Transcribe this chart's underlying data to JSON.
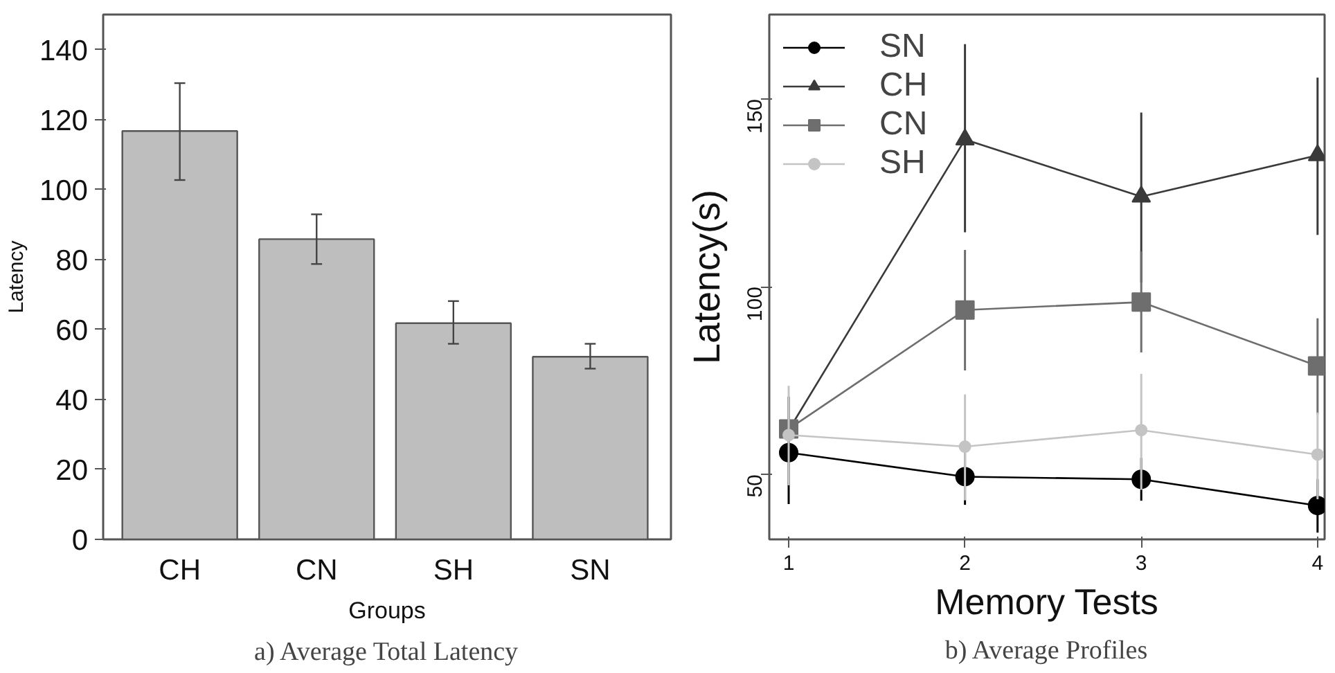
{
  "chart_data": [
    {
      "type": "bar",
      "xlabel": "Groups",
      "ylabel": "Latency",
      "annotations": [
        "a) Average Total Latency"
      ],
      "categories": [
        "CH",
        "CN",
        "SH",
        "SN"
      ],
      "values": [
        116.7,
        85.8,
        61.8,
        52.2
      ],
      "color": "#bebebe",
      "errors": [
        [
          102.7,
          130.4
        ],
        [
          78.7,
          92.9
        ],
        [
          55.9,
          68.1
        ],
        [
          48.8,
          55.9
        ]
      ],
      "ylim": [
        0,
        150
      ],
      "yticks": [
        0,
        20,
        40,
        60,
        80,
        100,
        120,
        140
      ],
      "grid": false
    },
    {
      "type": "line",
      "xlabel": "Memory Tests",
      "ylabel": "Latency(s)",
      "annotations": [
        "b) Average Profiles"
      ],
      "x": [
        1,
        2,
        3,
        4
      ],
      "xlim": [
        0.89,
        4.04
      ],
      "xticks": [
        1,
        2,
        3,
        4
      ],
      "ylim": [
        32.7,
        172.5
      ],
      "yticks": [
        50,
        100,
        150
      ],
      "grid": false,
      "legend": "top left",
      "line_style": "solid",
      "series": [
        {
          "name": "SN",
          "color": "#000000",
          "marker": "circle",
          "values": [
            55.8,
            49.4,
            48.7,
            41.7
          ],
          "errors": [
            [
              42.1,
              70.7
            ],
            [
              41.9,
              56.3
            ],
            [
              43.0,
              54.4
            ],
            [
              34.5,
              48.7
            ]
          ]
        },
        {
          "name": "CH",
          "color": "#3a3a3a",
          "marker": "triangle",
          "values": [
            61.8,
            139.2,
            124.0,
            135.0
          ],
          "errors": [
            null,
            [
              114.5,
              164.6
            ],
            [
              101.1,
              146.4
            ],
            [
              113.8,
              155.7
            ]
          ]
        },
        {
          "name": "CN",
          "color": "#6e6e6e",
          "marker": "square",
          "values": [
            62.1,
            93.8,
            95.9,
            78.9
          ],
          "errors": [
            null,
            [
              77.7,
              109.8
            ],
            [
              82.5,
              109.4
            ],
            [
              66.0,
              91.6
            ]
          ]
        },
        {
          "name": "SH",
          "color": "#c4c4c4",
          "marker": "circle",
          "values": [
            60.5,
            57.4,
            61.8,
            55.3
          ],
          "errors": [
            [
              47.1,
              73.6
            ],
            [
              43.1,
              71.3
            ],
            [
              45.9,
              76.8
            ],
            [
              43.4,
              66.5
            ]
          ]
        }
      ]
    }
  ]
}
